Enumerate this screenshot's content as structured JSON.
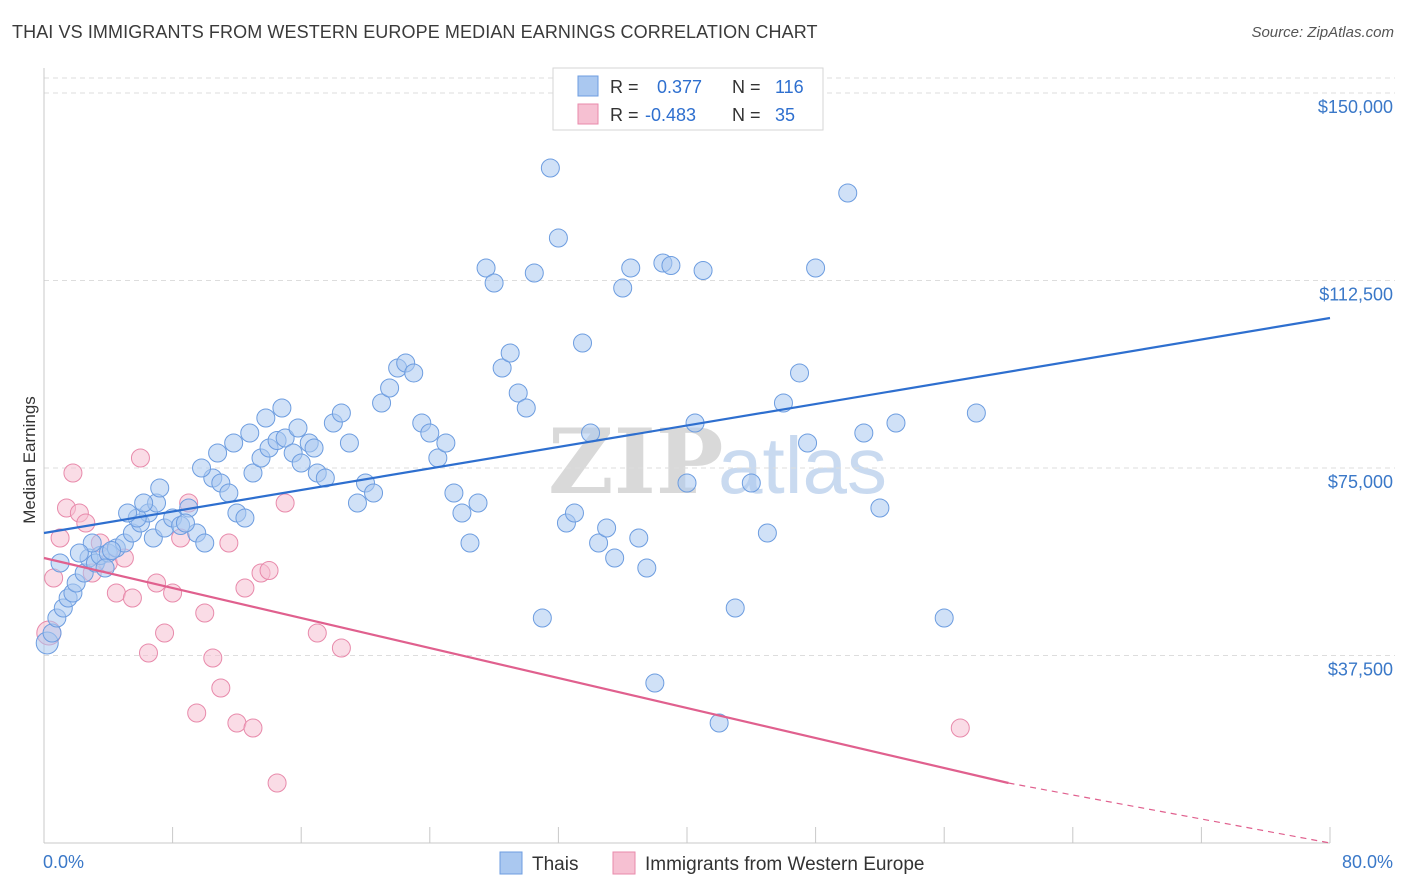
{
  "title": "THAI VS IMMIGRANTS FROM WESTERN EUROPE MEDIAN EARNINGS CORRELATION CHART",
  "source": "Source: ZipAtlas.com",
  "watermark": {
    "zip": "ZIP",
    "atlas": "atlas"
  },
  "legend": {
    "r_label": "R =",
    "n_label": "N =",
    "rows": [
      {
        "r": "0.377",
        "n": "116"
      },
      {
        "r": "-0.483",
        "n": "35"
      }
    ]
  },
  "bottom_legend": [
    "Thais",
    "Immigrants from Western Europe"
  ],
  "colors": {
    "blue_fill": "#aac8f0",
    "blue_stroke": "#6d9de0",
    "blue_line": "#2e6fcf",
    "pink_fill": "#f6c0d2",
    "pink_stroke": "#e88aab",
    "pink_line": "#e0608e",
    "grid": "#dddddd",
    "axis_text": "#3a78c8"
  },
  "chart_data": {
    "type": "scatter",
    "title": "THAI VS IMMIGRANTS FROM WESTERN EUROPE MEDIAN EARNINGS CORRELATION CHART",
    "xlabel": "",
    "ylabel": "Median Earnings",
    "xlim": [
      0,
      80
    ],
    "ylim": [
      0,
      153000
    ],
    "x_tick_labels": [
      "0.0%",
      "80.0%"
    ],
    "y_ticks": [
      {
        "value": 37500,
        "label": "$37,500"
      },
      {
        "value": 75000,
        "label": "$75,000"
      },
      {
        "value": 112500,
        "label": "$112,500"
      },
      {
        "value": 150000,
        "label": "$150,000"
      }
    ],
    "series": [
      {
        "name": "Thais",
        "r": 0.377,
        "n": 116,
        "trend": {
          "x": [
            0,
            80
          ],
          "y": [
            62000,
            105000
          ]
        },
        "points": [
          [
            0.2,
            40000
          ],
          [
            0.5,
            42000
          ],
          [
            0.8,
            45000
          ],
          [
            1.2,
            47000
          ],
          [
            1.5,
            49000
          ],
          [
            1.8,
            50000
          ],
          [
            2.0,
            52000
          ],
          [
            2.5,
            54000
          ],
          [
            2.8,
            57000
          ],
          [
            3.2,
            56000
          ],
          [
            3.5,
            57500
          ],
          [
            4.0,
            58000
          ],
          [
            4.5,
            59000
          ],
          [
            5.0,
            60000
          ],
          [
            5.5,
            62000
          ],
          [
            6.0,
            64000
          ],
          [
            6.5,
            66000
          ],
          [
            7.0,
            68000
          ],
          [
            3.0,
            60000
          ],
          [
            4.2,
            58500
          ],
          [
            5.8,
            65000
          ],
          [
            6.8,
            61000
          ],
          [
            7.5,
            63000
          ],
          [
            8.0,
            65000
          ],
          [
            8.5,
            63500
          ],
          [
            9.0,
            67000
          ],
          [
            9.5,
            62000
          ],
          [
            10.0,
            60000
          ],
          [
            10.5,
            73000
          ],
          [
            11.0,
            72000
          ],
          [
            11.5,
            70000
          ],
          [
            12.0,
            66000
          ],
          [
            12.5,
            65000
          ],
          [
            13.0,
            74000
          ],
          [
            13.5,
            77000
          ],
          [
            14.0,
            79000
          ],
          [
            14.5,
            80500
          ],
          [
            15.0,
            81000
          ],
          [
            15.5,
            78000
          ],
          [
            16.0,
            76000
          ],
          [
            16.5,
            80000
          ],
          [
            17.0,
            74000
          ],
          [
            17.5,
            73000
          ],
          [
            18.0,
            84000
          ],
          [
            18.5,
            86000
          ],
          [
            19.0,
            80000
          ],
          [
            19.5,
            68000
          ],
          [
            20.0,
            72000
          ],
          [
            20.5,
            70000
          ],
          [
            21.0,
            88000
          ],
          [
            21.5,
            91000
          ],
          [
            22.0,
            95000
          ],
          [
            22.5,
            96000
          ],
          [
            23.0,
            94000
          ],
          [
            23.5,
            84000
          ],
          [
            24.0,
            82000
          ],
          [
            24.5,
            77000
          ],
          [
            25.0,
            80000
          ],
          [
            25.5,
            70000
          ],
          [
            26.0,
            66000
          ],
          [
            26.5,
            60000
          ],
          [
            27.0,
            68000
          ],
          [
            27.5,
            115000
          ],
          [
            28.0,
            112000
          ],
          [
            28.5,
            95000
          ],
          [
            29.0,
            98000
          ],
          [
            29.5,
            90000
          ],
          [
            30.0,
            87000
          ],
          [
            30.5,
            114000
          ],
          [
            31.0,
            45000
          ],
          [
            31.5,
            135000
          ],
          [
            32.0,
            121000
          ],
          [
            32.5,
            64000
          ],
          [
            33.0,
            66000
          ],
          [
            33.5,
            100000
          ],
          [
            34.0,
            82000
          ],
          [
            34.5,
            60000
          ],
          [
            35.0,
            63000
          ],
          [
            35.5,
            57000
          ],
          [
            36.0,
            111000
          ],
          [
            36.5,
            115000
          ],
          [
            37.0,
            61000
          ],
          [
            37.5,
            55000
          ],
          [
            38.0,
            32000
          ],
          [
            38.5,
            116000
          ],
          [
            39.0,
            115500
          ],
          [
            40.0,
            72000
          ],
          [
            40.5,
            84000
          ],
          [
            41.0,
            114500
          ],
          [
            42.0,
            24000
          ],
          [
            43.0,
            47000
          ],
          [
            44.0,
            72000
          ],
          [
            45.0,
            62000
          ],
          [
            46.0,
            88000
          ],
          [
            47.0,
            94000
          ],
          [
            47.5,
            80000
          ],
          [
            48.0,
            115000
          ],
          [
            50.0,
            130000
          ],
          [
            51.0,
            82000
          ],
          [
            52.0,
            67000
          ],
          [
            53.0,
            84000
          ],
          [
            56.0,
            45000
          ],
          [
            58.0,
            86000
          ],
          [
            1.0,
            56000
          ],
          [
            2.2,
            58000
          ],
          [
            3.8,
            55000
          ],
          [
            5.2,
            66000
          ],
          [
            6.2,
            68000
          ],
          [
            7.2,
            71000
          ],
          [
            8.8,
            64000
          ],
          [
            9.8,
            75000
          ],
          [
            10.8,
            78000
          ],
          [
            11.8,
            80000
          ],
          [
            12.8,
            82000
          ],
          [
            13.8,
            85000
          ],
          [
            14.8,
            87000
          ],
          [
            15.8,
            83000
          ],
          [
            16.8,
            79000
          ]
        ]
      },
      {
        "name": "Immigrants from Western Europe",
        "r": -0.483,
        "n": 35,
        "trend": {
          "x": [
            0,
            60
          ],
          "y": [
            57000,
            12000
          ]
        },
        "trend_dashed": {
          "x": [
            60,
            80
          ],
          "y": [
            12000,
            -3000
          ]
        },
        "points": [
          [
            0.3,
            42000
          ],
          [
            0.6,
            53000
          ],
          [
            1.0,
            61000
          ],
          [
            1.4,
            67000
          ],
          [
            1.8,
            74000
          ],
          [
            2.2,
            66000
          ],
          [
            2.6,
            64000
          ],
          [
            3.0,
            54000
          ],
          [
            3.5,
            60000
          ],
          [
            4.0,
            56000
          ],
          [
            4.5,
            50000
          ],
          [
            5.0,
            57000
          ],
          [
            5.5,
            49000
          ],
          [
            6.0,
            77000
          ],
          [
            6.5,
            38000
          ],
          [
            7.0,
            52000
          ],
          [
            7.5,
            42000
          ],
          [
            8.0,
            50000
          ],
          [
            8.5,
            61000
          ],
          [
            9.0,
            68000
          ],
          [
            9.5,
            26000
          ],
          [
            10.0,
            46000
          ],
          [
            10.5,
            37000
          ],
          [
            11.0,
            31000
          ],
          [
            11.5,
            60000
          ],
          [
            12.0,
            24000
          ],
          [
            12.5,
            51000
          ],
          [
            13.0,
            23000
          ],
          [
            13.5,
            54000
          ],
          [
            14.0,
            54500
          ],
          [
            14.5,
            12000
          ],
          [
            15.0,
            68000
          ],
          [
            17.0,
            42000
          ],
          [
            18.5,
            39000
          ],
          [
            57.0,
            23000
          ]
        ]
      }
    ]
  }
}
